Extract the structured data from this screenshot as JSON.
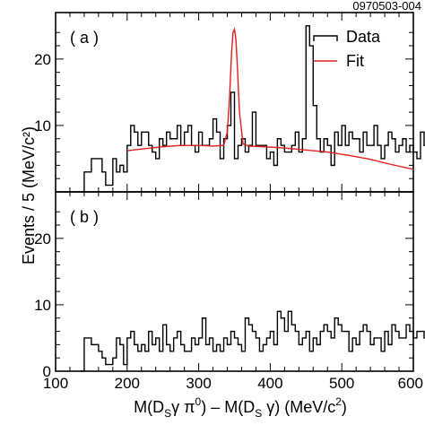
{
  "figure_id": "0970503-004",
  "ylabel": "Events / 5 (MeV/c²)",
  "xlabel": {
    "m1": "M(D",
    "sub1": "S",
    "gp": "γ π",
    "sup0": "0",
    "mid": ") – M(D",
    "sub2": "S",
    "g": " γ) (MeV/c",
    "sup2": "2",
    "end": ")"
  },
  "x_ticks": [
    "100",
    "200",
    "300",
    "400",
    "500",
    "600"
  ],
  "colors": {
    "data": "#000000",
    "fit": "#e02020"
  },
  "chart_data": [
    {
      "type": "histogram",
      "panel_label": "( a )",
      "legend": {
        "position": "top-right",
        "data_label": "Data",
        "fit_label": "Fit"
      },
      "xlim": [
        100,
        600
      ],
      "ylim": [
        0,
        27
      ],
      "y_ticks": [
        "10",
        "20"
      ],
      "bin_width": 5,
      "bins_start": 135,
      "data": [
        0,
        3,
        3,
        5,
        5,
        5,
        3,
        1,
        1,
        5,
        3,
        4,
        3,
        7,
        10,
        9,
        7,
        9,
        9,
        7,
        6,
        5,
        8,
        7,
        9,
        8,
        8,
        10,
        7,
        9,
        10,
        7,
        6,
        9,
        7,
        7,
        8,
        11,
        9,
        5,
        8,
        10,
        15,
        5,
        7,
        8,
        6,
        7,
        12,
        7,
        7,
        7,
        5,
        6,
        4,
        8,
        7,
        6,
        6,
        7,
        9,
        6,
        8,
        25,
        22,
        13,
        8,
        6,
        8,
        7,
        4,
        9,
        7,
        10,
        7,
        9,
        8,
        8,
        6,
        9,
        7,
        7,
        10,
        7,
        5,
        7,
        9,
        8,
        6,
        7,
        8,
        6,
        7,
        6,
        5,
        9,
        7,
        8,
        6,
        5,
        7,
        6,
        5,
        4,
        6,
        5,
        7,
        6,
        6,
        5,
        10,
        9,
        7,
        5,
        6,
        7,
        7,
        5,
        6,
        5,
        4,
        4,
        4
      ],
      "fit": {
        "x": [
          200,
          225,
          250,
          275,
          300,
          320,
          335,
          340,
          343,
          346,
          348,
          350,
          352,
          354,
          357,
          362,
          370,
          390,
          420,
          450,
          480,
          510,
          540,
          570,
          600
        ],
        "y": [
          6.2,
          6.5,
          6.8,
          7.0,
          7.0,
          6.9,
          7.0,
          9.0,
          14.0,
          21.0,
          24.0,
          24.5,
          23.0,
          19.0,
          12.0,
          7.2,
          6.9,
          6.8,
          6.6,
          6.3,
          6.0,
          5.5,
          4.9,
          4.1,
          3.4
        ]
      }
    },
    {
      "type": "histogram",
      "panel_label": "( b )",
      "xlim": [
        100,
        600
      ],
      "ylim": [
        0,
        27
      ],
      "y_ticks": [
        "0",
        "10",
        "20"
      ],
      "bin_width": 5,
      "bins_start": 135,
      "data": [
        0,
        5,
        5,
        4,
        4,
        3,
        2,
        1,
        1,
        2,
        5,
        4,
        1,
        5,
        6,
        4,
        3,
        4,
        3,
        6,
        4,
        5,
        3,
        7,
        4,
        3,
        5,
        6,
        4,
        3,
        3,
        5,
        4,
        5,
        8,
        4,
        5,
        3,
        4,
        3,
        5,
        4,
        6,
        5,
        4,
        3,
        8,
        7,
        6,
        5,
        3,
        4,
        5,
        6,
        4,
        9,
        8,
        6,
        9,
        7,
        6,
        4,
        5,
        6,
        3,
        5,
        4,
        6,
        7,
        6,
        5,
        8,
        7,
        6,
        6,
        3,
        5,
        4,
        6,
        7,
        6,
        4,
        5,
        5,
        3,
        6,
        4,
        7,
        6,
        5,
        5,
        7,
        6,
        5,
        6,
        6,
        5,
        4,
        3,
        5,
        5,
        8,
        6,
        4,
        6,
        3,
        6,
        5,
        10,
        5,
        6,
        5,
        5,
        4,
        9,
        8,
        6,
        6,
        5,
        6,
        6,
        6,
        5
      ]
    }
  ]
}
